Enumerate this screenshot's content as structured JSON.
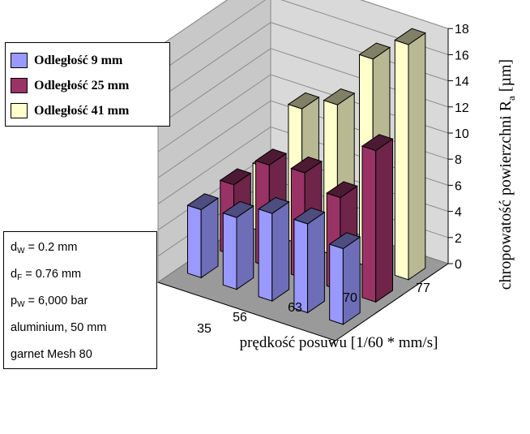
{
  "chart_data": {
    "type": "bar",
    "style": "3d-clustered",
    "categories": [
      "35",
      "56",
      "63",
      "70",
      "77"
    ],
    "series": [
      {
        "name": "Odległość 9 mm",
        "color": "#9999FF",
        "values": [
          5.2,
          5.5,
          6.7,
          6.8,
          5.8
        ]
      },
      {
        "name": "Odległość 25 mm",
        "color": "#993366",
        "values": [
          5.4,
          7.8,
          8.1,
          7.1,
          11.6
        ]
      },
      {
        "name": "Odległość 41 mm",
        "color": "#FFFFCC",
        "values": [
          5.0,
          10.4,
          11.6,
          16.0,
          18.0
        ]
      }
    ],
    "ylim": [
      0,
      18
    ],
    "yticks": [
      "0",
      "2",
      "4",
      "6",
      "8",
      "10",
      "12",
      "14",
      "16",
      "18"
    ],
    "ylabel_main": "chropowatość powierzchni R",
    "ylabel_sub": "a",
    "ylabel_unit": " [µm]",
    "xlabel": "prędkość posuwu [1/60 * mm/s]",
    "legend_position": "top-left",
    "grid": true
  },
  "params": [
    {
      "main": "d",
      "sub": "W",
      "rest": " = 0.2 mm"
    },
    {
      "main": "d",
      "sub": "F",
      "rest": " = 0.76 mm"
    },
    {
      "main": "p",
      "sub": "W",
      "rest": " = 6,000 bar"
    },
    {
      "main": "aluminium, 50 mm",
      "sub": "",
      "rest": ""
    },
    {
      "main": "garnet Mesh 80",
      "sub": "",
      "rest": ""
    }
  ]
}
